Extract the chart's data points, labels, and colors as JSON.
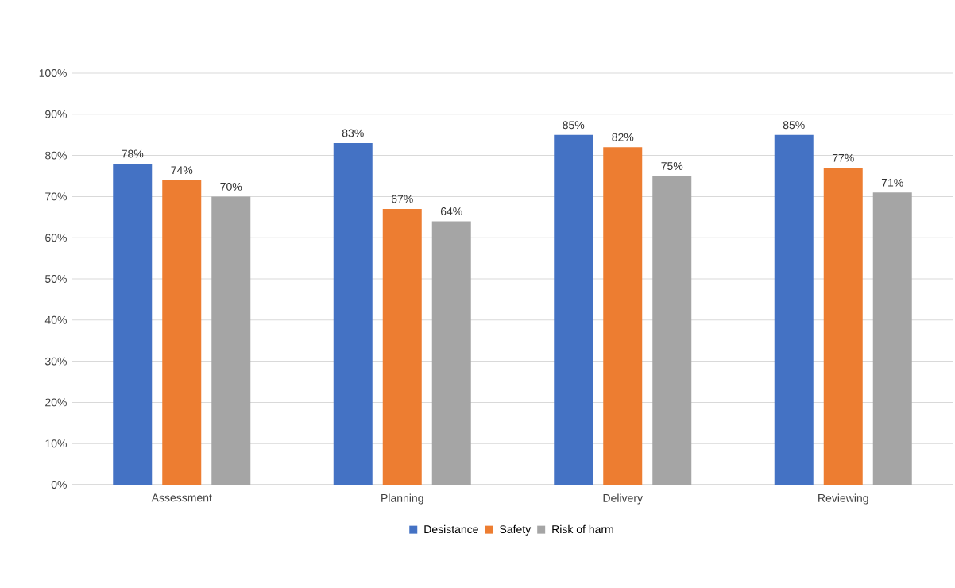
{
  "chart_data": {
    "type": "bar",
    "categories": [
      "Assessment",
      "Planning",
      "Delivery",
      "Reviewing"
    ],
    "series": [
      {
        "name": "Desistance",
        "color": "#4472c4",
        "values": [
          78,
          83,
          85,
          85
        ],
        "value_labels": [
          "78%",
          "83%",
          "85%",
          "85%"
        ]
      },
      {
        "name": "Safety",
        "color": "#ed7d31",
        "values": [
          74,
          67,
          82,
          77
        ],
        "value_labels": [
          "74%",
          "67%",
          "82%",
          "77%"
        ]
      },
      {
        "name": "Risk of harm",
        "color": "#a5a5a5",
        "values": [
          70,
          64,
          75,
          71
        ],
        "value_labels": [
          "70%",
          "64%",
          "75%",
          "71%"
        ]
      }
    ],
    "ylim": [
      0,
      100
    ],
    "yticks": [
      {
        "value": 0,
        "label": "0%"
      },
      {
        "value": 10,
        "label": "10%"
      },
      {
        "value": 20,
        "label": "20%"
      },
      {
        "value": 30,
        "label": "30%"
      },
      {
        "value": 40,
        "label": "40%"
      },
      {
        "value": 50,
        "label": "50%"
      },
      {
        "value": 60,
        "label": "60%"
      },
      {
        "value": 70,
        "label": "70%"
      },
      {
        "value": 80,
        "label": "80%"
      },
      {
        "value": 90,
        "label": "90%"
      },
      {
        "value": 100,
        "label": "100%"
      }
    ],
    "grid": "y",
    "legend": "bottom"
  }
}
